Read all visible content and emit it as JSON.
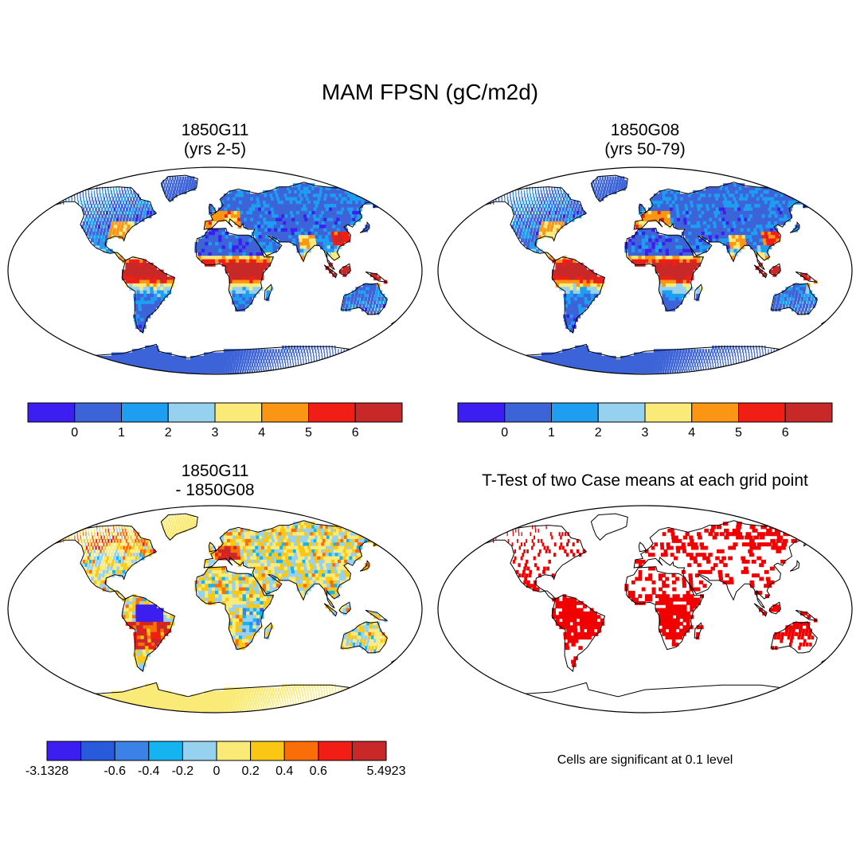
{
  "title": "MAM FPSN (gC/m2d)",
  "panels": [
    {
      "id": "p1",
      "title_line1": "1850G11",
      "title_line2": "(yrs 2-5)",
      "kind": "field"
    },
    {
      "id": "p2",
      "title_line1": "1850G08",
      "title_line2": "(yrs 50-79)",
      "kind": "field"
    },
    {
      "id": "p3",
      "title_line1": "1850G11",
      "title_line2": "- 1850G08",
      "kind": "diff"
    },
    {
      "id": "p4",
      "title_line1": "T-Test of two Case means at each grid point",
      "title_line2": "",
      "kind": "ttest"
    }
  ],
  "colorbar_top": {
    "colors": [
      "#3c1ef0",
      "#3c64d8",
      "#1e9ef0",
      "#96d2f0",
      "#faeb78",
      "#fa9614",
      "#f01e14",
      "#c82828"
    ],
    "labels": [
      "0",
      "1",
      "2",
      "3",
      "4",
      "5",
      "6"
    ]
  },
  "colorbar_diff": {
    "colors": [
      "#3c1ef0",
      "#285adc",
      "#3c82e6",
      "#14b4f0",
      "#96d2f0",
      "#faeb78",
      "#fac814",
      "#fa6e0a",
      "#f01e14",
      "#c82828"
    ],
    "labels": [
      "-3.1328",
      "-0.6",
      "-0.4",
      "-0.2",
      "0",
      "0.2",
      "0.4",
      "0.6",
      "5.4923"
    ]
  },
  "ttest_note": "Cells are significant at 0.1 level",
  "colors": {
    "ocean": "#ffffff",
    "coast": "#000000",
    "significant": "#f00000"
  }
}
